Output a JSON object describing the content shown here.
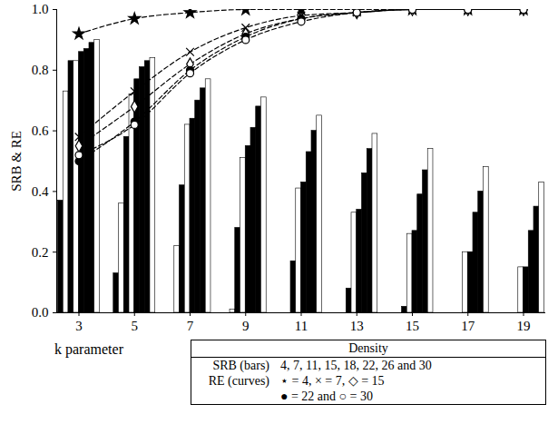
{
  "chart_data": {
    "type": "bar",
    "y_label": "SRB & RE",
    "x_label": "k parameter",
    "x": [
      3,
      5,
      7,
      9,
      11,
      13,
      15,
      17,
      19
    ],
    "xlim": [
      2.2,
      19.8
    ],
    "xticks": [
      3,
      5,
      7,
      9,
      11,
      13,
      15,
      17,
      19
    ],
    "ylim": [
      0,
      1
    ],
    "yticks": [
      {
        "value": 0,
        "label": "0.0"
      },
      {
        "value": 0.2,
        "label": "0.2"
      },
      {
        "value": 0.4,
        "label": "0.4"
      },
      {
        "value": 0.6,
        "label": "0.6"
      },
      {
        "value": 0.8,
        "label": "0.8"
      },
      {
        "value": 1,
        "label": "1.0"
      }
    ],
    "series": [
      {
        "name": "4",
        "type": "bar",
        "color": "#000000",
        "values": [
          0.37,
          0.13,
          0.0,
          0.0,
          0.0,
          0.0,
          0.0,
          0.0,
          0.0
        ]
      },
      {
        "name": "7",
        "type": "bar",
        "color": "#ffffff",
        "values": [
          0.73,
          0.36,
          0.22,
          0.01,
          0.0,
          0.0,
          0.0,
          0.0,
          0.0
        ]
      },
      {
        "name": "11",
        "type": "bar",
        "color": "#000000",
        "values": [
          0.83,
          0.58,
          0.42,
          0.28,
          0.17,
          0.08,
          0.02,
          0.0,
          0.0
        ]
      },
      {
        "name": "15",
        "type": "bar",
        "color": "#ffffff",
        "values": [
          0.83,
          0.72,
          0.62,
          0.51,
          0.41,
          0.33,
          0.26,
          0.2,
          0.15
        ]
      },
      {
        "name": "18",
        "type": "bar",
        "color": "#000000",
        "values": [
          0.86,
          0.77,
          0.64,
          0.55,
          0.43,
          0.34,
          0.27,
          0.2,
          0.15
        ]
      },
      {
        "name": "22",
        "type": "bar",
        "color": "#000000",
        "values": [
          0.87,
          0.81,
          0.7,
          0.61,
          0.53,
          0.46,
          0.39,
          0.33,
          0.27
        ]
      },
      {
        "name": "26",
        "type": "bar",
        "color": "#000000",
        "values": [
          0.89,
          0.83,
          0.74,
          0.68,
          0.6,
          0.54,
          0.47,
          0.4,
          0.35
        ]
      },
      {
        "name": "30",
        "type": "bar",
        "color": "#ffffff",
        "values": [
          0.9,
          0.84,
          0.77,
          0.71,
          0.65,
          0.59,
          0.54,
          0.48,
          0.43
        ]
      },
      {
        "name": "4",
        "type": "line",
        "color": "#000000",
        "marker": "star",
        "line_style": "dashed",
        "values": [
          0.92,
          0.97,
          0.99,
          1.0,
          1.0,
          1.0,
          1.0,
          1.0,
          1.0
        ]
      },
      {
        "name": "7",
        "type": "line",
        "color": "#000000",
        "marker": "times",
        "line_style": "dashed",
        "values": [
          0.58,
          0.73,
          0.86,
          0.94,
          0.98,
          0.99,
          1.0,
          1.0,
          1.0
        ]
      },
      {
        "name": "15",
        "type": "line",
        "color": "#000000",
        "marker": "diamond",
        "line_style": "dashed",
        "values": [
          0.55,
          0.68,
          0.82,
          0.92,
          0.97,
          0.99,
          1.0,
          1.0,
          1.0
        ]
      },
      {
        "name": "22",
        "type": "line",
        "color": "#000000",
        "marker": "circle",
        "line_style": "dashed",
        "values": [
          0.5,
          0.63,
          0.8,
          0.91,
          0.97,
          0.99,
          1.0,
          1.0,
          1.0
        ]
      },
      {
        "name": "30",
        "type": "line",
        "color": "#000000",
        "marker": "open_circle",
        "line_style": "dashed",
        "values": [
          0.52,
          0.62,
          0.79,
          0.9,
          0.96,
          0.99,
          1.0,
          1.0,
          1.0
        ]
      }
    ],
    "annotations": {
      "header": "Density",
      "rows": [
        {
          "label": "SRB (bars)",
          "lines": [
            "4, 7, 11, 15, 18, 22, 26 and 30"
          ]
        },
        {
          "label": "RE (curves)",
          "lines": [
            "⋆ = 4, × = 7, ◇ = 15",
            "● = 22 and ○ = 30"
          ]
        }
      ]
    }
  }
}
